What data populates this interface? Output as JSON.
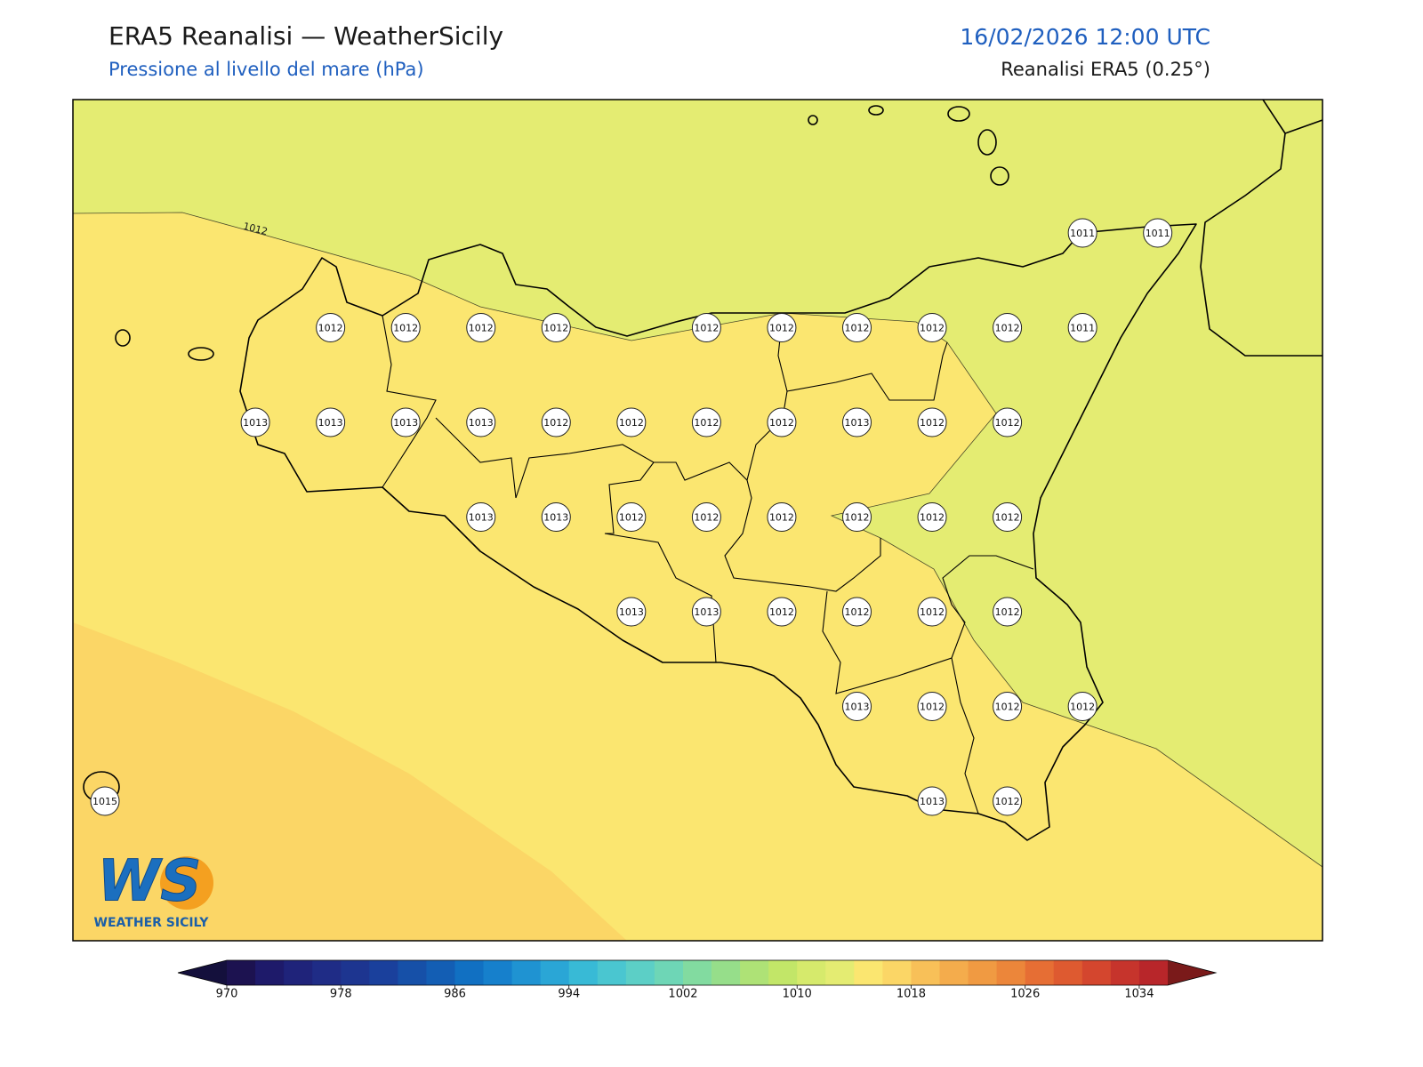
{
  "header": {
    "title": "ERA5 Reanalisi — WeatherSicily",
    "subtitle": "Pressione al livello del mare (hPa)",
    "valid_time": "16/02/2026 12:00 UTC",
    "source": "Reanalisi ERA5 (0.25°)"
  },
  "map": {
    "contour_label": "1012",
    "grid": [
      [
        null,
        null,
        null,
        null,
        null,
        null,
        null,
        null,
        null,
        null,
        null,
        null,
        null,
        1011,
        1011
      ],
      [
        null,
        null,
        null,
        1012,
        1012,
        1012,
        1012,
        null,
        1012,
        1012,
        1012,
        1012,
        1012,
        1011,
        null
      ],
      [
        null,
        null,
        1013,
        1013,
        1013,
        1013,
        1012,
        1012,
        1012,
        1012,
        1013,
        1012,
        1012,
        null,
        null
      ],
      [
        null,
        null,
        null,
        null,
        null,
        1013,
        1013,
        1012,
        1012,
        1012,
        1012,
        1012,
        1012,
        null,
        null
      ],
      [
        null,
        null,
        null,
        null,
        null,
        null,
        null,
        1013,
        1013,
        1012,
        1012,
        1012,
        1012,
        null,
        null
      ],
      [
        null,
        null,
        null,
        null,
        null,
        null,
        null,
        null,
        null,
        null,
        1013,
        1012,
        1012,
        1012,
        null
      ],
      [
        1015,
        null,
        null,
        null,
        null,
        null,
        null,
        null,
        null,
        null,
        null,
        1013,
        1012,
        null,
        null
      ]
    ]
  },
  "logo": {
    "mark": "WS",
    "name": "WEATHER SICILY"
  },
  "colorbar": {
    "lim": [
      970,
      1036
    ],
    "step": 2,
    "ticks": [
      970,
      978,
      986,
      994,
      1002,
      1010,
      1018,
      1026,
      1034
    ],
    "colors": [
      "#1c1250",
      "#1e1a6a",
      "#1f237a",
      "#1f2c86",
      "#1d3590",
      "#1a409c",
      "#1650a8",
      "#135eb4",
      "#1170c2",
      "#1680cc",
      "#1f93d2",
      "#2aa6d6",
      "#38bad6",
      "#4ac6d0",
      "#5ccfc6",
      "#6ed6b6",
      "#82dba0",
      "#96de8a",
      "#aee276",
      "#c2e668",
      "#d6ea6c",
      "#e4ec72",
      "#fbe670",
      "#fbd666",
      "#f8c058",
      "#f4ac4c",
      "#f09a42",
      "#ec863a",
      "#e66e34",
      "#de5a30",
      "#d4462e",
      "#c6342c",
      "#b8262a"
    ],
    "under": "#14103c",
    "over": "#7a1a1a"
  }
}
